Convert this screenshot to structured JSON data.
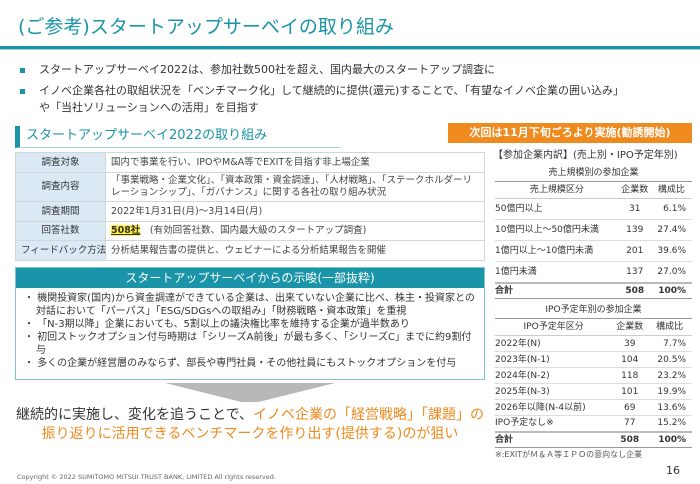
{
  "title": "(ご参考)スタートアップサーベイの取り組み",
  "bullets": [
    "スタートアップサーベイ2022は、参加社数500社を超え、国内最大のスタートアップ調査に",
    "イノベ企業各社の取組状況を「ベンチマーク化」して継続的に提供(還元)することで、「有望なイノベ企業の囲い込み」",
    "や「当社ソリューションへの活用」を目指す"
  ],
  "section_title": "スタートアップサーベイ2022の取り組み",
  "survey": [
    {
      "k": "調査対象",
      "v": "国内で事業を行い、IPOやM&A等でEXITを目指す非上場企業"
    },
    {
      "k": "調査内容",
      "v": "「事業戦略・企業文化」、「資本政策・資金調達」、「人材戦略」、「ステークホルダーリレーションシップ」、「ガバナンス」に関する各社の取り組み状況"
    },
    {
      "k": "調査期間",
      "v": "2022年1月31日(月)～3月14日(月)"
    },
    {
      "k": "回答社数",
      "hl": "508社",
      "v": "(有効回答社数、国内最大級のスタートアップ調査)"
    },
    {
      "k": "フィードバック方法",
      "v": "分析結果報告書の提供と、ウェビナーによる分析結果報告を開催"
    }
  ],
  "banner": "次回は11月下旬ごろより実施(勧誘開始)",
  "breakdown_title": "【参加企業内訳】(売上別・IPO予定年別)",
  "sales_table": {
    "caption": "売上規模別の参加企業",
    "headers": [
      "売上規模区分",
      "企業数",
      "構成比"
    ],
    "rows": [
      [
        "50億円以上",
        "31",
        "6.1%"
      ],
      [
        "10億円以上～50億円未満",
        "139",
        "27.4%"
      ],
      [
        "1億円以上～10億円未満",
        "201",
        "39.6%"
      ],
      [
        "1億円未満",
        "137",
        "27.0%"
      ]
    ],
    "total": [
      "合計",
      "508",
      "100%"
    ]
  },
  "ipo_table": {
    "caption": "IPO予定年別の参加企業",
    "headers": [
      "IPO予定年区分",
      "企業数",
      "構成比"
    ],
    "rows": [
      [
        "2022年(N)",
        "39",
        "7.7%"
      ],
      [
        "2023年(N-1)",
        "104",
        "20.5%"
      ],
      [
        "2024年(N-2)",
        "118",
        "23.2%"
      ],
      [
        "2025年(N-3)",
        "101",
        "19.9%"
      ],
      [
        "2026年以降(N-4以前)",
        "69",
        "13.6%"
      ],
      [
        "IPO予定なし※",
        "77",
        "15.2%"
      ]
    ],
    "total": [
      "合計",
      "508",
      "100%"
    ]
  },
  "note": "※:EXITがＭ＆Ａ等ＩＰＯの意向なし企業",
  "page_number": "16",
  "insights": {
    "title": "スタートアップサーベイからの示唆(一部抜粋)",
    "items": [
      "機関投資家(国内)から資金調達ができている企業は、出来ていない企業に比べ、株主・投資家との対話において「パーパス」「ESG/SDGsへの取組み」「財務戦略・資本政策」を重視",
      "「N-3期以降」企業においても、5割以上の議決権比率を維持する企業が過半数あり",
      "初回ストックオプション付与時期は「シリーズA前後」が最も多く、「シリーズC」までに約9割付与",
      "多くの企業が経営層のみならず、部長や専門社員・その他社員にもストックオプションを付与"
    ]
  },
  "conclusion": {
    "plain": "継続的に実施し、変化を追うことで、",
    "orange1": "イノベ企業の「経営戦略」「課題」の",
    "orange2": "振り返りに活用できるベンチマークを作り出す(提供する)のが狙い"
  },
  "copyright": "Copyright © 2022 SUMITOMO MITSUI TRUST BANK, LIMITED All rights reserved.",
  "colors": {
    "accent": "#1a94a8",
    "orange": "#ef8a1e",
    "highlight": "#ffef3a"
  }
}
